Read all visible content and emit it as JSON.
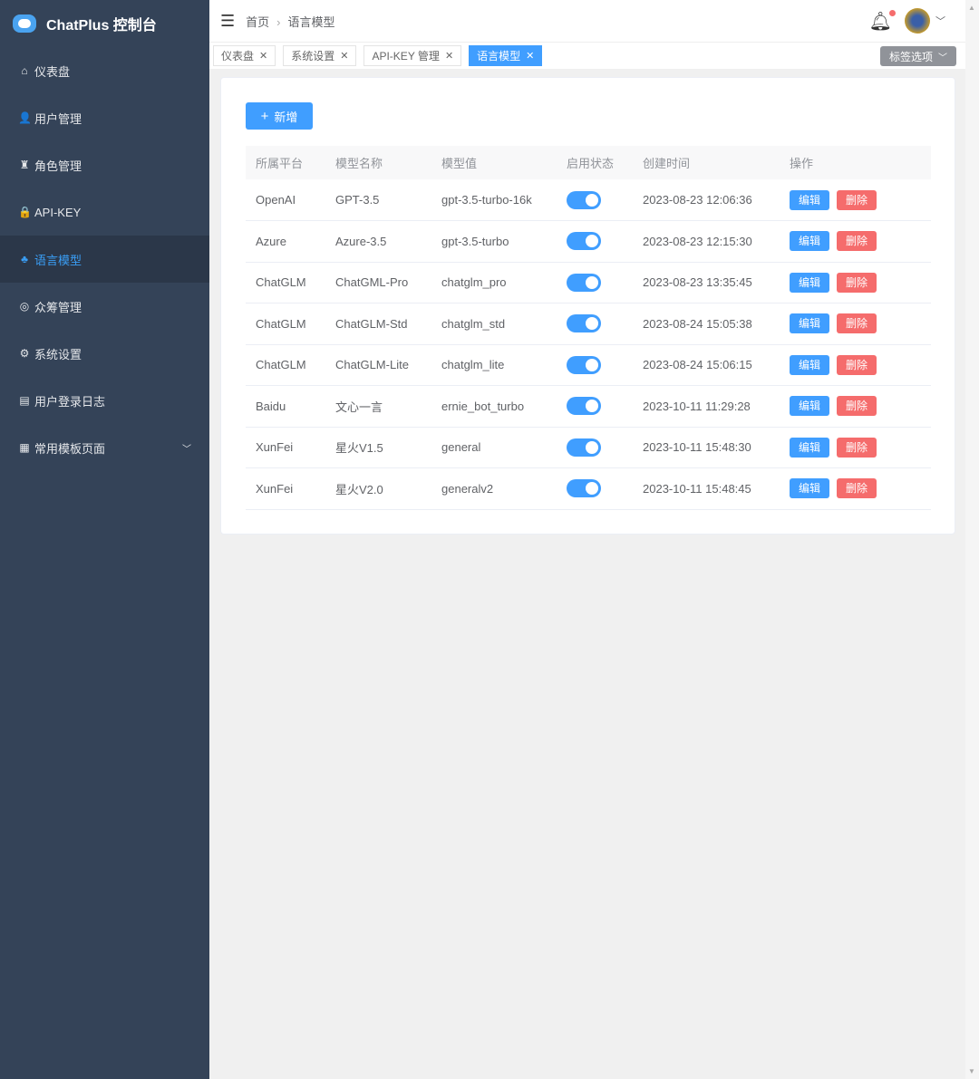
{
  "app": {
    "title": "ChatPlus 控制台"
  },
  "sidebar": {
    "items": [
      {
        "label": "仪表盘",
        "icon": "⌂",
        "name": "home"
      },
      {
        "label": "用户管理",
        "icon": "👤",
        "name": "user"
      },
      {
        "label": "角色管理",
        "icon": "♜",
        "name": "role"
      },
      {
        "label": "API-KEY",
        "icon": "🔒",
        "name": "lock"
      },
      {
        "label": "语言模型",
        "icon": "♣",
        "name": "model",
        "active": true
      },
      {
        "label": "众筹管理",
        "icon": "◎",
        "name": "crowdfund"
      },
      {
        "label": "系统设置",
        "icon": "⚙",
        "name": "gear"
      },
      {
        "label": "用户登录日志",
        "icon": "▤",
        "name": "log"
      },
      {
        "label": "常用模板页面",
        "icon": "▦",
        "name": "template",
        "chevron": "﹀"
      }
    ]
  },
  "header": {
    "breadcrumb": [
      "首页",
      "语言模型"
    ]
  },
  "tabs": [
    {
      "label": "仪表盘"
    },
    {
      "label": "系统设置"
    },
    {
      "label": "API-KEY 管理"
    },
    {
      "label": "语言模型",
      "active": true
    }
  ],
  "tag_options": "标签选项",
  "main": {
    "add_label": "新增",
    "columns": [
      "所属平台",
      "模型名称",
      "模型值",
      "启用状态",
      "创建时间",
      "操作"
    ],
    "rows": [
      [
        "OpenAI",
        "GPT-3.5",
        "gpt-3.5-turbo-16k",
        true,
        "2023-08-23 12:06:36"
      ],
      [
        "Azure",
        "Azure-3.5",
        "gpt-3.5-turbo",
        true,
        "2023-08-23 12:15:30"
      ],
      [
        "ChatGLM",
        "ChatGML-Pro",
        "chatglm_pro",
        true,
        "2023-08-23 13:35:45"
      ],
      [
        "ChatGLM",
        "ChatGLM-Std",
        "chatglm_std",
        true,
        "2023-08-24 15:05:38"
      ],
      [
        "ChatGLM",
        "ChatGLM-Lite",
        "chatglm_lite",
        true,
        "2023-08-24 15:06:15"
      ],
      [
        "Baidu",
        "文心一言",
        "ernie_bot_turbo",
        true,
        "2023-10-11 11:29:28"
      ],
      [
        "XunFei",
        "星火V1.5",
        "general",
        true,
        "2023-10-11 15:48:30"
      ],
      [
        "XunFei",
        "星火V2.0",
        "generalv2",
        true,
        "2023-10-11 15:48:45"
      ]
    ],
    "edit_label": "编辑",
    "delete_label": "删除"
  },
  "colors": {
    "sidebar": "#344358",
    "accent": "#409eff",
    "danger": "#f56c6c"
  }
}
